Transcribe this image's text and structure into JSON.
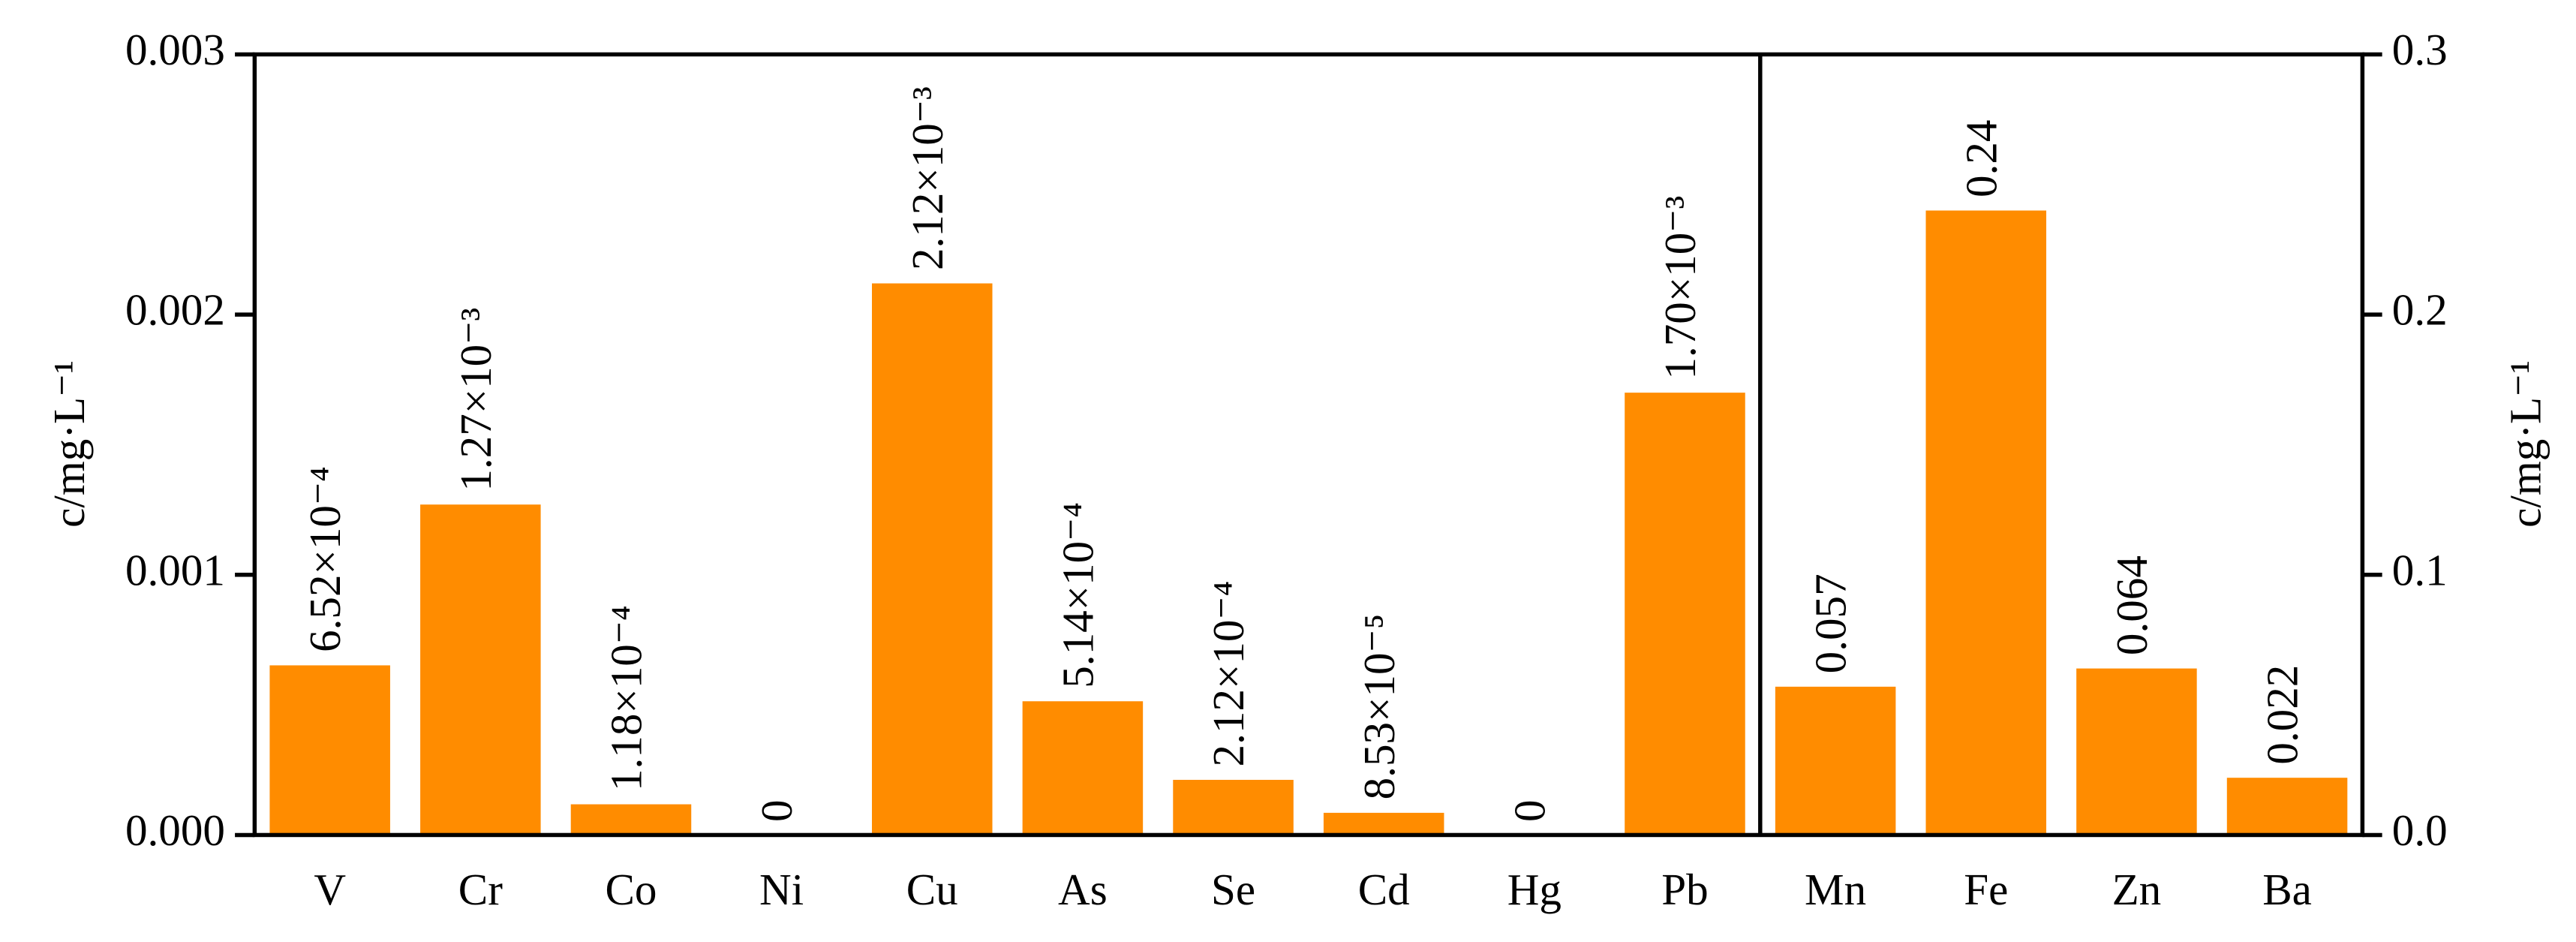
{
  "chart_data": {
    "type": "bar",
    "y_label": "c/mg·L⁻¹",
    "y2_label": "c/mg·L⁻¹",
    "categories": [
      "V",
      "Cr",
      "Co",
      "Ni",
      "Cu",
      "As",
      "Se",
      "Cd",
      "Hg",
      "Pb",
      "Mn",
      "Fe",
      "Zn",
      "Ba"
    ],
    "series": [
      {
        "color": "#ff8c00",
        "axis": "y",
        "values": [
          0.000652,
          0.00127,
          0.000118,
          0,
          0.00212,
          0.000514,
          0.000212,
          8.53e-05,
          0,
          0.0017,
          null,
          null,
          null,
          null
        ],
        "value_labels": [
          "6.52×10⁻⁴",
          "1.27×10⁻³",
          "1.18×10⁻⁴",
          "0",
          "2.12×10⁻³",
          "5.14×10⁻⁴",
          "2.12×10⁻⁴",
          "8.53×10⁻⁵",
          "0",
          "1.70×10⁻³",
          null,
          null,
          null,
          null
        ]
      },
      {
        "color": "#ff8c00",
        "axis": "y2",
        "values": [
          null,
          null,
          null,
          null,
          null,
          null,
          null,
          null,
          null,
          null,
          0.057,
          0.24,
          0.064,
          0.022
        ],
        "value_labels": [
          null,
          null,
          null,
          null,
          null,
          null,
          null,
          null,
          null,
          null,
          "0.057",
          "0.24",
          "0.064",
          "0.022"
        ]
      }
    ],
    "ylim": [
      0,
      0.003
    ],
    "yticks": [
      {
        "value": 0,
        "label": "0.000"
      },
      0.001,
      0.002,
      0.003
    ],
    "y2lim": [
      0,
      0.3
    ],
    "y2ticks": [
      {
        "value": 0,
        "label": "0.0"
      },
      0.1,
      0.2,
      0.3
    ]
  }
}
